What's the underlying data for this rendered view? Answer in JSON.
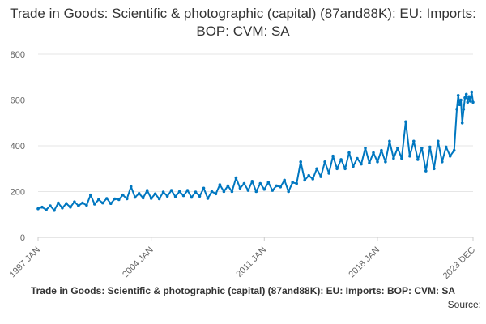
{
  "chart_data": {
    "type": "line",
    "title": "Trade in Goods: Scientific & photographic (capital) (87and88K): EU: Imports: BOP: CVM: SA",
    "xlabel": "",
    "ylabel": "",
    "ylim": [
      0,
      800
    ],
    "y_ticks": [
      0,
      200,
      400,
      600,
      800
    ],
    "x_range": [
      "1997-01",
      "2023-12"
    ],
    "x_tick_labels": [
      "1997 JAN",
      "2004 JAN",
      "2011 JAN",
      "2018 JAN",
      "2023 DEC"
    ],
    "grid": true,
    "legend": "none",
    "series": [
      {
        "color": "#0077c0",
        "points": [
          [
            "1997-01",
            125
          ],
          [
            "1997-04",
            132
          ],
          [
            "1997-07",
            120
          ],
          [
            "1997-10",
            138
          ],
          [
            "1998-01",
            118
          ],
          [
            "1998-04",
            150
          ],
          [
            "1998-07",
            128
          ],
          [
            "1998-10",
            148
          ],
          [
            "1999-01",
            132
          ],
          [
            "1999-04",
            155
          ],
          [
            "1999-07",
            138
          ],
          [
            "1999-10",
            150
          ],
          [
            "2000-01",
            140
          ],
          [
            "2000-04",
            185
          ],
          [
            "2000-07",
            145
          ],
          [
            "2000-10",
            165
          ],
          [
            "2001-01",
            150
          ],
          [
            "2001-04",
            170
          ],
          [
            "2001-07",
            148
          ],
          [
            "2001-10",
            168
          ],
          [
            "2002-01",
            165
          ],
          [
            "2002-04",
            185
          ],
          [
            "2002-07",
            168
          ],
          [
            "2002-10",
            222
          ],
          [
            "2003-01",
            175
          ],
          [
            "2003-04",
            192
          ],
          [
            "2003-07",
            172
          ],
          [
            "2003-10",
            205
          ],
          [
            "2004-01",
            170
          ],
          [
            "2004-04",
            190
          ],
          [
            "2004-07",
            168
          ],
          [
            "2004-10",
            198
          ],
          [
            "2005-01",
            180
          ],
          [
            "2005-04",
            205
          ],
          [
            "2005-07",
            178
          ],
          [
            "2005-10",
            200
          ],
          [
            "2006-01",
            182
          ],
          [
            "2006-04",
            205
          ],
          [
            "2006-07",
            175
          ],
          [
            "2006-10",
            198
          ],
          [
            "2007-01",
            180
          ],
          [
            "2007-04",
            215
          ],
          [
            "2007-07",
            170
          ],
          [
            "2007-10",
            200
          ],
          [
            "2008-01",
            190
          ],
          [
            "2008-04",
            230
          ],
          [
            "2008-07",
            200
          ],
          [
            "2008-10",
            225
          ],
          [
            "2009-01",
            200
          ],
          [
            "2009-04",
            260
          ],
          [
            "2009-07",
            215
          ],
          [
            "2009-10",
            235
          ],
          [
            "2010-01",
            205
          ],
          [
            "2010-04",
            245
          ],
          [
            "2010-07",
            200
          ],
          [
            "2010-10",
            235
          ],
          [
            "2011-01",
            210
          ],
          [
            "2011-04",
            240
          ],
          [
            "2011-07",
            205
          ],
          [
            "2011-10",
            225
          ],
          [
            "2012-01",
            220
          ],
          [
            "2012-04",
            250
          ],
          [
            "2012-07",
            200
          ],
          [
            "2012-10",
            240
          ],
          [
            "2013-01",
            235
          ],
          [
            "2013-04",
            330
          ],
          [
            "2013-07",
            250
          ],
          [
            "2013-10",
            270
          ],
          [
            "2014-01",
            255
          ],
          [
            "2014-04",
            300
          ],
          [
            "2014-07",
            265
          ],
          [
            "2014-10",
            330
          ],
          [
            "2015-01",
            280
          ],
          [
            "2015-04",
            355
          ],
          [
            "2015-07",
            300
          ],
          [
            "2015-10",
            340
          ],
          [
            "2016-01",
            300
          ],
          [
            "2016-04",
            370
          ],
          [
            "2016-07",
            310
          ],
          [
            "2016-10",
            345
          ],
          [
            "2017-01",
            320
          ],
          [
            "2017-04",
            390
          ],
          [
            "2017-07",
            325
          ],
          [
            "2017-10",
            370
          ],
          [
            "2018-01",
            330
          ],
          [
            "2018-04",
            380
          ],
          [
            "2018-07",
            330
          ],
          [
            "2018-10",
            420
          ],
          [
            "2019-01",
            345
          ],
          [
            "2019-04",
            390
          ],
          [
            "2019-07",
            345
          ],
          [
            "2019-10",
            505
          ],
          [
            "2020-01",
            355
          ],
          [
            "2020-04",
            420
          ],
          [
            "2020-07",
            340
          ],
          [
            "2020-10",
            390
          ],
          [
            "2021-01",
            290
          ],
          [
            "2021-04",
            395
          ],
          [
            "2021-07",
            300
          ],
          [
            "2021-10",
            420
          ],
          [
            "2022-01",
            330
          ],
          [
            "2022-04",
            395
          ],
          [
            "2022-07",
            355
          ],
          [
            "2022-10",
            380
          ],
          [
            "2022-12",
            560
          ],
          [
            "2023-01",
            620
          ],
          [
            "2023-02",
            580
          ],
          [
            "2023-03",
            600
          ],
          [
            "2023-04",
            500
          ],
          [
            "2023-05",
            560
          ],
          [
            "2023-06",
            610
          ],
          [
            "2023-07",
            625
          ],
          [
            "2023-08",
            590
          ],
          [
            "2023-09",
            615
          ],
          [
            "2023-10",
            595
          ],
          [
            "2023-11",
            635
          ],
          [
            "2023-12",
            590
          ]
        ]
      }
    ]
  },
  "footer": {
    "caption": "Trade in Goods: Scientific & photographic (capital) (87and88K): EU: Imports: BOP: CVM: SA",
    "source": "Source:"
  }
}
